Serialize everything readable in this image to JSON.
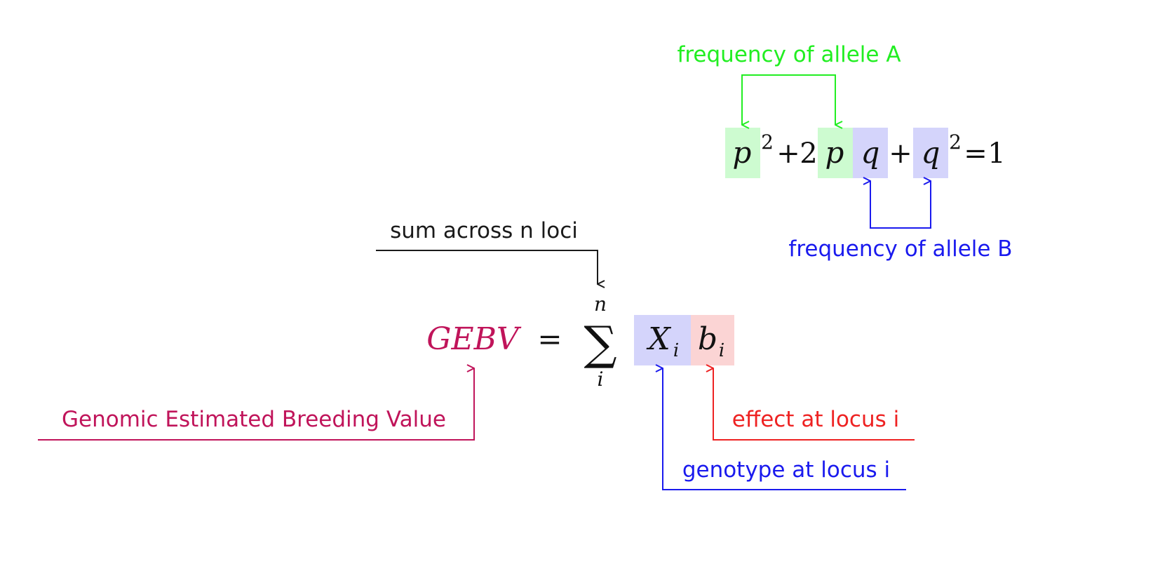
{
  "colors": {
    "allele_a": "#22ee22",
    "allele_b": "#1a1aee",
    "gebv": "#c0145a",
    "effect": "#ee2222",
    "sum": "#1a1a1a",
    "box_green": "#cdfbd0",
    "box_blue": "#d4d4fb",
    "box_red": "#fbd4d4"
  },
  "hardy_weinberg": {
    "allele_a_label": "frequency of allele A",
    "allele_b_label": "frequency of allele B",
    "p": "p",
    "q": "q",
    "sq": "2",
    "plus": "+",
    "coef": "2",
    "eq": "=",
    "one": "1"
  },
  "gebv_formula": {
    "gebv": "GEBV",
    "eq": "=",
    "sigma": "∑",
    "upper": "n",
    "lower": "i",
    "x": "X",
    "b": "b",
    "sub": "i",
    "sum_label": "sum across n loci",
    "gebv_label": "Genomic Estimated Breeding Value",
    "effect_label": "effect at locus i",
    "genotype_label": "genotype at locus i"
  }
}
